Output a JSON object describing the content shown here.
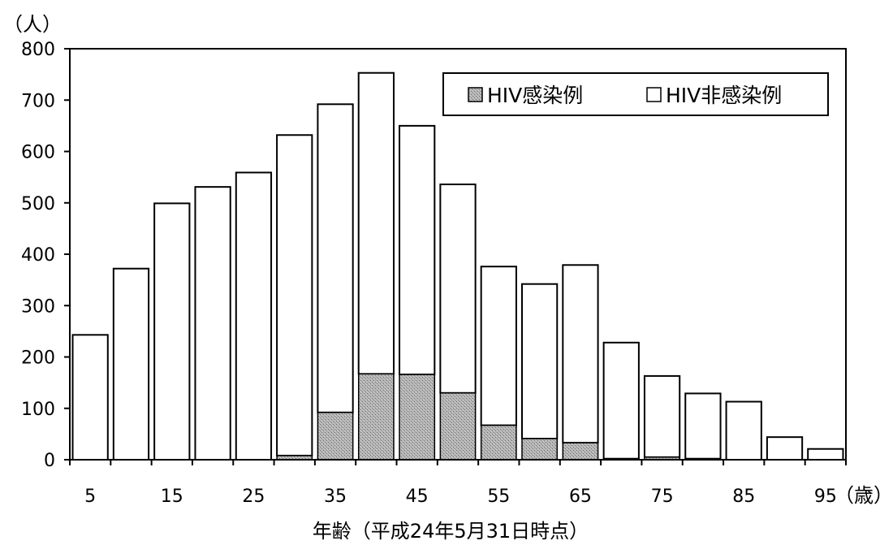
{
  "chart_data": {
    "type": "bar",
    "stacked": true,
    "title": "",
    "ylabel": "（人）",
    "xlabel": "年齢（平成24年5月31日時点）",
    "x_unit": "（歳）",
    "ylim": [
      0,
      800
    ],
    "yticks": [
      "0",
      "100",
      "200",
      "300",
      "400",
      "500",
      "600",
      "700",
      "800"
    ],
    "xtick_labels": [
      "5",
      "15",
      "25",
      "35",
      "45",
      "55",
      "65",
      "75",
      "85",
      "95"
    ],
    "categories": [
      5,
      10,
      15,
      20,
      25,
      30,
      35,
      40,
      45,
      50,
      55,
      60,
      65,
      70,
      75,
      80,
      85,
      90,
      95
    ],
    "series": [
      {
        "name": "HIV感染例",
        "color": "#a9a9a9",
        "values": [
          0,
          0,
          0,
          0,
          0,
          8,
          92,
          167,
          166,
          130,
          67,
          41,
          33,
          2,
          5,
          2,
          0,
          0,
          0
        ]
      },
      {
        "name": "HIV非感染例",
        "color": "#ffffff",
        "values": [
          243,
          372,
          499,
          531,
          559,
          624,
          600,
          586,
          484,
          406,
          309,
          301,
          346,
          226,
          158,
          127,
          113,
          44,
          21
        ]
      }
    ],
    "totals": [
      243,
      372,
      499,
      531,
      559,
      632,
      692,
      753,
      650,
      536,
      376,
      342,
      379,
      228,
      163,
      129,
      113,
      44,
      21
    ],
    "grid": false,
    "legend_position": "top-right"
  }
}
